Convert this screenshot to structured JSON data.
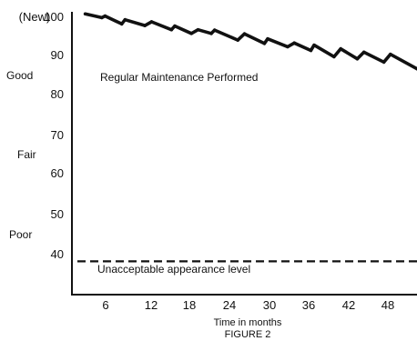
{
  "chart_data": {
    "type": "line",
    "title": "",
    "xlabel": "Time in months",
    "ylabel": "",
    "caption": "FIGURE 2",
    "xlim": [
      0,
      52
    ],
    "ylim": [
      32,
      100
    ],
    "x_ticks": [
      "6",
      "12",
      "18",
      "24",
      "30",
      "36",
      "42",
      "48"
    ],
    "y_ticks": [
      "100",
      "90",
      "80",
      "70",
      "60",
      "50",
      "40"
    ],
    "y_top_prefix": "(New)",
    "y_quality_labels": [
      {
        "label": "Good",
        "y": 84
      },
      {
        "label": "Fair",
        "y": 64
      },
      {
        "label": "Poor",
        "y": 44
      }
    ],
    "annotations": {
      "curve_label": "Regular Maintenance Performed",
      "threshold_label": "Unacceptable appearance level"
    },
    "threshold": {
      "y": 40,
      "style": "dashed"
    },
    "series": [
      {
        "x": [
          2.0,
          4.5,
          5.0,
          7.5,
          8.0,
          11.0,
          12.0,
          15.0,
          15.5,
          18.0,
          19.0,
          21.0,
          21.5,
          25.0,
          26.0,
          29.0,
          29.5,
          32.5,
          33.5,
          36.0,
          36.5,
          39.5,
          40.5,
          43.0,
          44.0,
          47.0,
          48.0,
          52.0
        ],
        "y": [
          99.5,
          98.6,
          99.0,
          97.1,
          98.1,
          96.7,
          97.6,
          95.7,
          96.6,
          94.8,
          95.7,
          94.8,
          95.6,
          93.2,
          94.7,
          92.4,
          93.5,
          91.6,
          92.5,
          90.7,
          92.0,
          89.2,
          91.1,
          88.7,
          90.3,
          87.9,
          89.8,
          86.3
        ]
      }
    ]
  }
}
